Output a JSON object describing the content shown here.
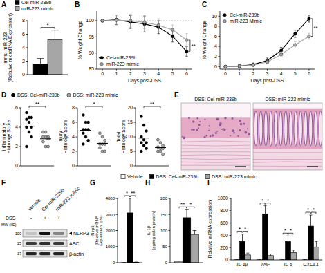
{
  "chart_data": [
    {
      "title": "A",
      "type": "bar",
      "y_label": [
        "mmu-miR-223",
        "(Relative microRNA Expression)"
      ],
      "categories": [
        null
      ],
      "series": [
        {
          "name": "Cel-miR-239b",
          "color": "#000000",
          "values": [
            1.6
          ],
          "errors": [
            0.8
          ]
        },
        {
          "name": "miR-223 mimic",
          "color": "#a6a6a6",
          "values": [
            5.2
          ],
          "errors": [
            1.4
          ]
        }
      ],
      "ylim": [
        0,
        8
      ],
      "yticks": [
        0,
        2,
        4,
        6,
        8
      ],
      "legend": "top",
      "annotations": [
        "*"
      ]
    },
    {
      "title": "B",
      "type": "line",
      "x_label": "Days post-DSS",
      "y_label": [
        "% Weight Change"
      ],
      "x": [
        0,
        1,
        2,
        3,
        4,
        5,
        6
      ],
      "xlim": [
        -0.4,
        6.4
      ],
      "xticks": [
        0,
        1,
        2,
        3,
        4,
        5,
        6
      ],
      "ylim": [
        85,
        103
      ],
      "yticks": [
        85,
        90,
        95,
        100
      ],
      "reference_line": 100,
      "legend": "bottom-left",
      "marker": "circle",
      "series": [
        {
          "name": "Cel-miR-239b",
          "color": "#000000",
          "values": [
            100,
            100.3,
            99.6,
            99,
            98,
            95.2,
            90.5
          ],
          "errors": [
            0,
            1.5,
            2,
            2.5,
            2,
            1.8,
            1.5
          ]
        },
        {
          "name": "miR-223 mimic",
          "color": "#a6a6a6",
          "values": [
            100,
            100.2,
            100,
            99.5,
            98.6,
            97.2,
            94
          ],
          "errors": [
            0,
            1.5,
            2,
            2,
            2,
            1.5,
            2
          ]
        }
      ],
      "annotations": [
        "**"
      ]
    },
    {
      "title": "C",
      "type": "line",
      "x_label": "Days post-DSS",
      "y_label": [
        "% Weight Change"
      ],
      "x": [
        0,
        1,
        2,
        3,
        4,
        5,
        6
      ],
      "xlim": [
        -0.4,
        6.4
      ],
      "xticks": [
        0,
        1,
        2,
        3,
        4,
        5,
        6
      ],
      "ylim": [
        -0.5,
        11
      ],
      "yticks": [
        0,
        2,
        4,
        6,
        8,
        10
      ],
      "legend": "top-left",
      "marker": "circle",
      "series": [
        {
          "name": "Cel-miR-239b",
          "color": "#000000",
          "values": [
            0,
            0.1,
            0.4,
            1.2,
            3.2,
            6.5,
            9.5
          ],
          "errors": [
            0,
            0.2,
            0.3,
            0.5,
            0.6,
            0.7,
            0.7
          ]
        },
        {
          "name": "miR-223 Mimic",
          "color": "#a6a6a6",
          "values": [
            0,
            0.1,
            0.3,
            0.9,
            2.4,
            4.3,
            6
          ],
          "errors": [
            0,
            0.2,
            0.3,
            0.4,
            0.5,
            0.6,
            0.6
          ]
        }
      ],
      "annotations": [
        "**"
      ]
    },
    {
      "title": "D",
      "type": "dot",
      "y_label": [
        "Inflammatory",
        "Histology Score"
      ],
      "ylim": [
        0,
        6
      ],
      "yticks": [
        0,
        2,
        4,
        6
      ],
      "legend": "top",
      "series": [
        {
          "name": "DSS: Cel-miR-239b",
          "color": "#000000",
          "values": [
            5.5,
            5,
            5,
            4.8,
            4.5,
            4,
            4,
            3.5,
            3,
            2
          ],
          "mean": 4.1
        },
        {
          "name": "DSS: miR-223 mimic",
          "color": "#a6a6a6",
          "values": [
            3.5,
            3.5,
            3,
            3,
            3,
            2.8,
            2.5,
            2,
            2
          ],
          "mean": 2.8
        }
      ],
      "annotations": [
        "**"
      ]
    },
    {
      "type": "dot",
      "y_label": [
        "Injury",
        "Histology Score"
      ],
      "ylim": [
        0,
        8
      ],
      "yticks": [
        0,
        2,
        4,
        6,
        8
      ],
      "series": [
        {
          "color": "#000000",
          "values": [
            7,
            6,
            6,
            5,
            5,
            5,
            4.5,
            4,
            3.5,
            3
          ],
          "mean": 4.9
        },
        {
          "color": "#a6a6a6",
          "values": [
            4.5,
            4,
            3.5,
            3,
            3,
            3,
            2.5,
            2,
            2
          ],
          "mean": 3.1
        }
      ],
      "annotations": [
        "*"
      ]
    },
    {
      "type": "dot",
      "y_label": [
        "Total",
        "Histology Score"
      ],
      "ylim": [
        0,
        20
      ],
      "yticks": [
        0,
        5,
        10,
        15,
        20
      ],
      "series": [
        {
          "color": "#000000",
          "values": [
            17,
            14,
            12,
            10,
            9,
            8,
            8,
            7,
            6,
            5
          ],
          "mean": 9.6
        },
        {
          "color": "#a6a6a6",
          "values": [
            9,
            8,
            7,
            6.5,
            6,
            6,
            5,
            5,
            4
          ],
          "mean": 6.3
        }
      ],
      "annotations": [
        "**"
      ]
    },
    {
      "title": "E",
      "type": "image",
      "panels": [
        "DSS: Cel-miR-239b",
        "DSS: miR-223 mimic"
      ]
    },
    {
      "title": "F",
      "type": "blot",
      "lanes": [
        "Vehicle",
        "Cel-miR-239b",
        "miR-223 mimic"
      ],
      "treatment_label": "DSS",
      "treatment": [
        "-",
        "+",
        "+"
      ],
      "mw_label": "MW (kD)",
      "rows": [
        {
          "label": "NLRP3",
          "mw": "100",
          "band_intensity": [
            0.15,
            1,
            0.45
          ]
        },
        {
          "label": "ASC",
          "mw": "25",
          "band_intensity": [
            0.8,
            0.85,
            0.8
          ]
        },
        {
          "label": "β-actin",
          "mw": "37",
          "band_intensity": [
            0.9,
            0.9,
            0.9
          ]
        }
      ]
    },
    {
      "title": "G",
      "type": "bar",
      "y_label": [
        "Nlrp3",
        "(Relative mRNA",
        "Expression, 18s)"
      ],
      "categories": [
        null
      ],
      "series": [
        {
          "name": "Vehicle",
          "color": "#ffffff",
          "values": [
            5
          ],
          "errors": [
            2
          ]
        },
        {
          "name": "DSS: Cel-miR-239b",
          "color": "#000000",
          "values": [
            3100
          ],
          "errors": [
            900
          ]
        },
        {
          "name": "DSS: miR-223 mimic",
          "color": "#a6a6a6",
          "values": [
            30
          ],
          "errors": [
            10
          ]
        }
      ],
      "ylim": [
        0,
        4000
      ],
      "yticks": [
        0,
        1000,
        2000,
        3000,
        4000
      ],
      "legend": "top",
      "annotations": [
        "*",
        "**"
      ]
    },
    {
      "title": "H",
      "type": "bar",
      "y_label": [
        "IL-1β",
        "(pg/mg colon protein)"
      ],
      "categories": [
        null
      ],
      "series": [
        {
          "color": "#ffffff",
          "values": [
            4
          ],
          "errors": [
            1
          ]
        },
        {
          "color": "#000000",
          "values": [
            140
          ],
          "errors": [
            25
          ]
        },
        {
          "color": "#a6a6a6",
          "values": [
            88
          ],
          "errors": [
            12
          ]
        }
      ],
      "ylim": [
        0,
        200
      ],
      "yticks": [
        0,
        50,
        100,
        150,
        200
      ],
      "annotations": [
        "**",
        "*"
      ]
    },
    {
      "title": "I",
      "type": "bar",
      "y_label": [
        "Relative mRNA expression"
      ],
      "categories": [
        "IL-1β",
        "TNF",
        "IL-6",
        "CXCL1"
      ],
      "series": [
        {
          "color": "#ffffff",
          "values": [
            2,
            2,
            2,
            2
          ],
          "errors": [
            1,
            1,
            1,
            1
          ]
        },
        {
          "color": "#000000",
          "values": [
            300,
            750,
            300,
            550
          ],
          "errors": [
            120,
            130,
            90,
            180
          ]
        },
        {
          "color": "#a6a6a6",
          "values": [
            80,
            70,
            120,
            210
          ],
          "errors": [
            30,
            25,
            40,
            90
          ]
        }
      ],
      "ylim": [
        0,
        1000
      ],
      "yticks": [
        0,
        200,
        400,
        600,
        800,
        1000
      ],
      "annotations": [
        "*",
        "*",
        "*",
        "*",
        "*",
        "*",
        "*",
        "*"
      ]
    }
  ]
}
